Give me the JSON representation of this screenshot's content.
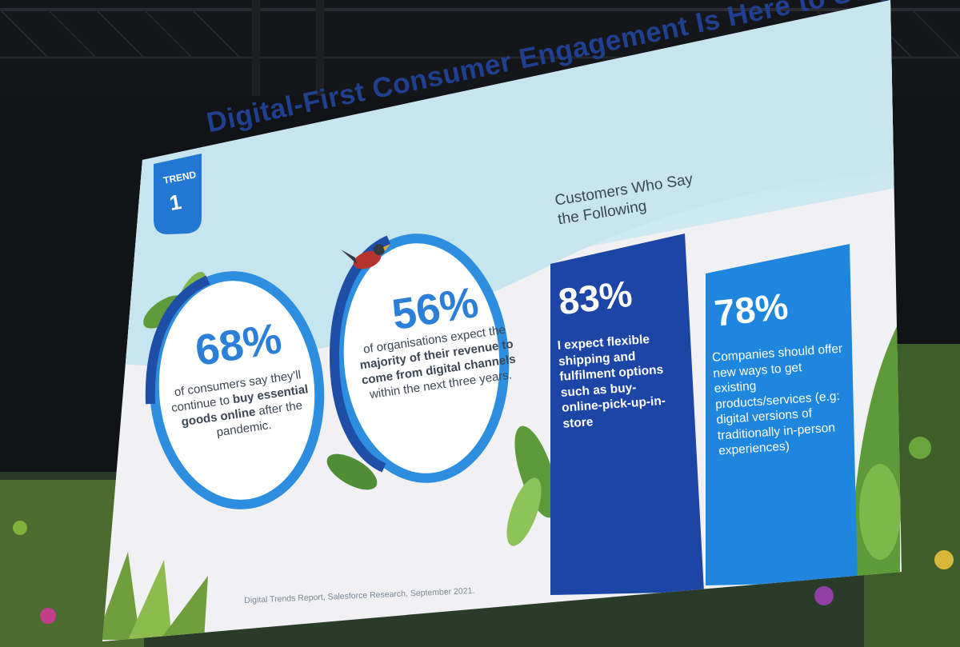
{
  "slide": {
    "trend_label": "TREND",
    "trend_number": "1",
    "title": "Digital-First Consumer Engagement Is Here to Stay",
    "customers_heading": "Customers Who Say the Following",
    "source": "Digital Trends Report, Salesforce Research, September 2021."
  },
  "stats": [
    {
      "percent": "68%",
      "value": 68,
      "text_pre": "of consumers say they'll continue to ",
      "text_bold": "buy essential goods online",
      "text_post": " after the pandemic."
    },
    {
      "percent": "56%",
      "value": 56,
      "text_pre": "of organisations expect the ",
      "text_bold": "majority of their revenue to come from digital channels",
      "text_post": " within the next three years."
    }
  ],
  "bars": [
    {
      "percent": "83%",
      "value": 83,
      "text": "I expect flexible shipping and fulfilment options such as buy-online-pick-up-in-store"
    },
    {
      "percent": "78%",
      "value": 78,
      "text": "Companies should offer new ways to get existing products/services (e.g: digital versions of traditionally in-person experiences)"
    }
  ],
  "colors": {
    "accent_blue": "#2b7fd6",
    "dark_blue": "#1f3f8f",
    "bar_dark": "#1d45a6",
    "bar_light": "#1f86dd",
    "slide_top": "#c9e6ef",
    "slide_bottom": "#f1f1f4"
  }
}
